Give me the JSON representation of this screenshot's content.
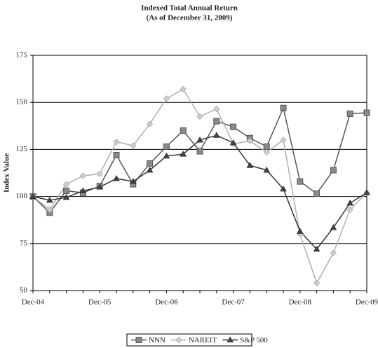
{
  "chart_data": {
    "type": "line",
    "title": "Indexed Total Annual Return",
    "subtitle": "(As of December 31, 2009)",
    "y_label": "Index Value",
    "categories": [
      "Dec-04",
      null,
      null,
      null,
      "Dec-05",
      null,
      null,
      null,
      "Dec-06",
      null,
      null,
      null,
      "Dec-07",
      null,
      null,
      null,
      "Dec-08",
      null,
      null,
      null,
      "Dec-09"
    ],
    "ylim": [
      50,
      175
    ],
    "yticks": [
      50,
      75,
      100,
      125,
      150,
      175
    ],
    "grid": true,
    "legend": "bottom",
    "series": [
      {
        "name": "NNN",
        "color": "#555555",
        "marker": "square",
        "marker_fill": "#8a8a8a",
        "values": [
          100,
          91.4,
          103,
          102,
          105.5,
          122,
          106.5,
          117.5,
          126.5,
          135,
          124,
          140,
          137,
          131,
          126.5,
          147,
          108,
          101.5,
          114,
          144,
          144.5
        ]
      },
      {
        "name": "NAREIT",
        "color": "#b0b0b0",
        "marker": "diamond",
        "marker_fill": "#d0d0d0",
        "values": [
          100,
          93,
          106.5,
          111,
          112,
          129,
          127,
          138.5,
          152,
          157,
          142.5,
          146.5,
          128,
          129.5,
          123.5,
          130,
          80,
          54,
          70,
          93,
          102
        ]
      },
      {
        "name": "S&P 500",
        "color": "#333333",
        "marker": "triangle",
        "marker_fill": "#444444",
        "values": [
          100,
          98,
          99.5,
          103,
          105,
          109.5,
          108,
          114,
          121.5,
          122.5,
          130,
          132.5,
          128.5,
          116.5,
          114,
          104,
          81.5,
          72,
          83.5,
          96.5,
          102
        ]
      }
    ]
  }
}
